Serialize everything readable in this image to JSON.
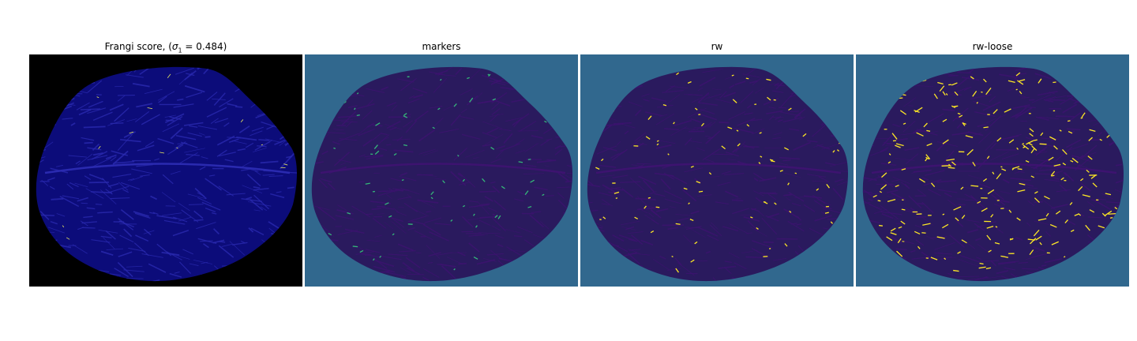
{
  "figure": {
    "panels": [
      {
        "id": "frangi",
        "title_prefix": "Frangi score, (",
        "title_sigma": "σ",
        "title_sub": "1",
        "title_suffix": " = 0.484)",
        "background_color": "#000000",
        "fill_color": "#0c0c7a",
        "line_color": "#2a2ab0",
        "highlight_color": "#e8e860"
      },
      {
        "id": "markers",
        "title": "markers",
        "background_color": "#31688e",
        "fill_color": "#2a1a5e",
        "line_color": "#3d1370",
        "highlight_color": "#35b779"
      },
      {
        "id": "rw",
        "title": "rw",
        "background_color": "#31688e",
        "fill_color": "#2a1a5e",
        "line_color": "#3d1370",
        "highlight_color": "#fde725"
      },
      {
        "id": "rw-loose",
        "title": "rw-loose",
        "background_color": "#31688e",
        "fill_color": "#2a1a5e",
        "line_color": "#3d1370",
        "highlight_color": "#fde725"
      }
    ]
  }
}
